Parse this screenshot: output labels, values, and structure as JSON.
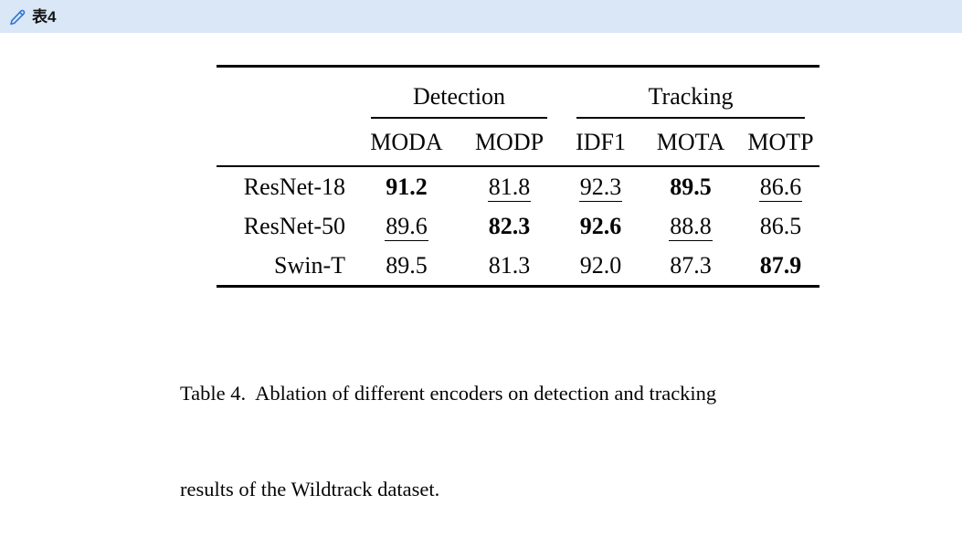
{
  "header_bar": {
    "title": "表4",
    "icon": "pencil-icon",
    "bg_color": "#d9e7f6",
    "icon_color": "#2e75d3"
  },
  "table": {
    "groups": [
      {
        "label": "Detection",
        "span": 2
      },
      {
        "label": "Tracking",
        "span": 3
      }
    ],
    "columns": [
      "MODA",
      "MODP",
      "IDF1",
      "MOTA",
      "MOTP"
    ],
    "rows": [
      {
        "label": "ResNet-18",
        "values": [
          {
            "text": "91.2",
            "bold": true
          },
          {
            "text": "81.8",
            "underline": true
          },
          {
            "text": "92.3",
            "underline": true
          },
          {
            "text": "89.5",
            "bold": true
          },
          {
            "text": "86.6",
            "underline": true
          }
        ]
      },
      {
        "label": "ResNet-50",
        "values": [
          {
            "text": "89.6",
            "underline": true
          },
          {
            "text": "82.3",
            "bold": true
          },
          {
            "text": "92.6",
            "bold": true
          },
          {
            "text": "88.8",
            "underline": true
          },
          {
            "text": "86.5"
          }
        ]
      },
      {
        "label": "Swin-T",
        "values": [
          {
            "text": "89.5"
          },
          {
            "text": "81.3"
          },
          {
            "text": "92.0"
          },
          {
            "text": "87.3"
          },
          {
            "text": "87.9",
            "bold": true
          }
        ]
      }
    ]
  },
  "caption": {
    "lines": [
      "Table 4.  Ablation of different encoders on detection and tracking",
      "results of the Wildtrack dataset."
    ]
  }
}
